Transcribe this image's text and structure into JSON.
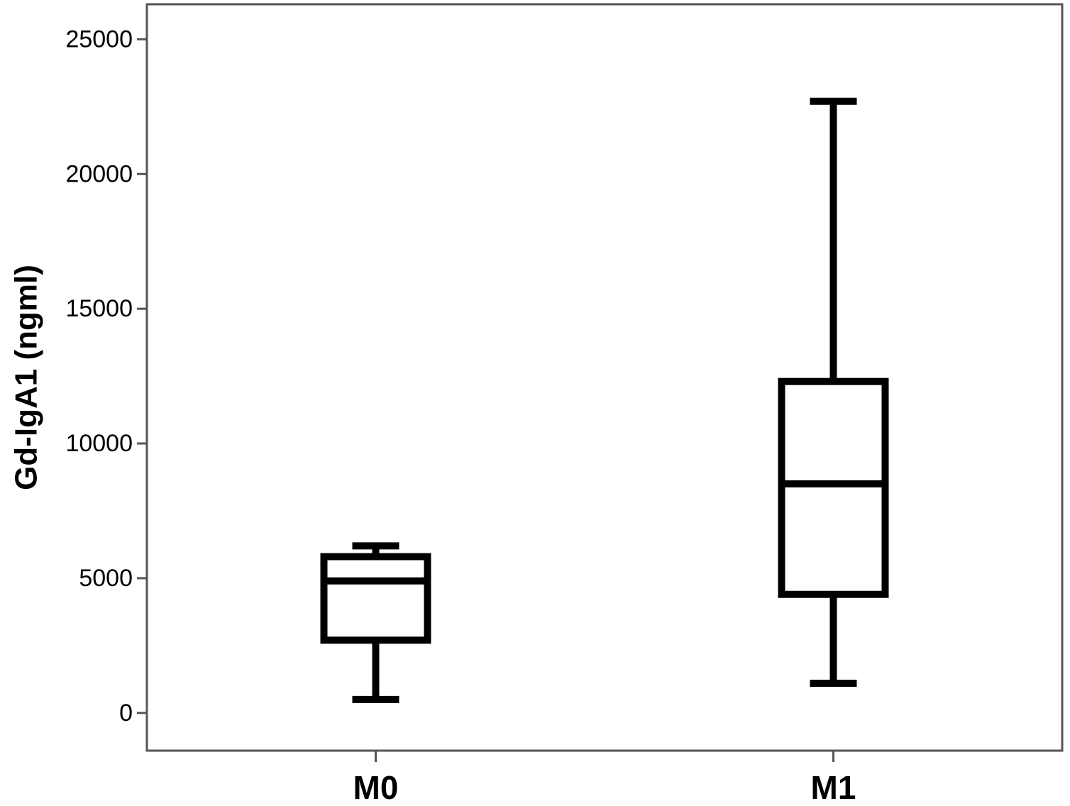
{
  "chart_data": {
    "type": "boxplot",
    "title": "",
    "xlabel": "",
    "ylabel": "Gd-IgA1 (ngml)",
    "ylim": [
      -1400,
      26300
    ],
    "yticks": [
      0,
      5000,
      10000,
      15000,
      20000,
      25000
    ],
    "ytick_labels": [
      "0",
      "5000",
      "10000",
      "15000",
      "20000",
      "25000"
    ],
    "categories": [
      "M0",
      "M1"
    ],
    "boxes": [
      {
        "category": "M0",
        "whisker_low": 500,
        "q1": 2700,
        "median": 4900,
        "q3": 5800,
        "whisker_high": 6200
      },
      {
        "category": "M1",
        "whisker_low": 1100,
        "q1": 4400,
        "median": 8500,
        "q3": 12300,
        "whisker_high": 22700
      }
    ],
    "grid": false,
    "legend": "none",
    "colors": {
      "box_stroke": "#000000",
      "box_fill": "#ffffff",
      "frame": "#555555"
    }
  }
}
